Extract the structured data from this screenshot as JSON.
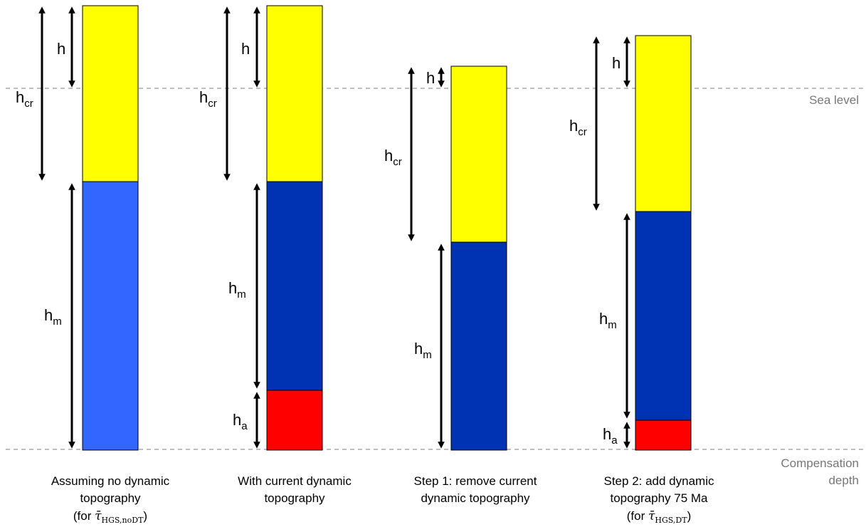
{
  "reference_lines": {
    "sea_level": "Sea level",
    "compensation_depth_line1": "Compensation",
    "compensation_depth_line2": "depth"
  },
  "colors": {
    "crust": "#ffff00",
    "mantle_no_dt": "#3366ff",
    "mantle": "#0033b3",
    "asthenosphere": "#ff0000",
    "reference_line": "#aaaaaa",
    "arrow": "#000000"
  },
  "symbols": {
    "h": "h",
    "h_cr_base": "h",
    "h_cr_sub": "cr",
    "h_m_base": "h",
    "h_m_sub": "m",
    "h_a_base": "h",
    "h_a_sub": "a"
  },
  "columns": [
    {
      "caption_line1": "Assuming no dynamic",
      "caption_line2": "topography",
      "caption_line3_prefix": "(for ",
      "caption_tau": "τ̄",
      "caption_tau_sub": "HGS,noDT",
      "caption_line3_suffix": ")",
      "layers": [
        "crust",
        "mantle_no_dt"
      ]
    },
    {
      "caption_line1": "With current dynamic",
      "caption_line2": "topography",
      "layers": [
        "crust",
        "mantle",
        "asthenosphere"
      ]
    },
    {
      "caption_line1": "Step 1: remove current",
      "caption_line2": "dynamic topography",
      "layers": [
        "crust",
        "mantle"
      ]
    },
    {
      "caption_line1": "Step 2: add dynamic",
      "caption_line2": "topography 75 Ma",
      "caption_line3_prefix": "(for ",
      "caption_tau": "τ̄",
      "caption_tau_sub": "HGS,DT",
      "caption_line3_suffix": ")",
      "layers": [
        "crust",
        "mantle",
        "asthenosphere"
      ]
    }
  ]
}
